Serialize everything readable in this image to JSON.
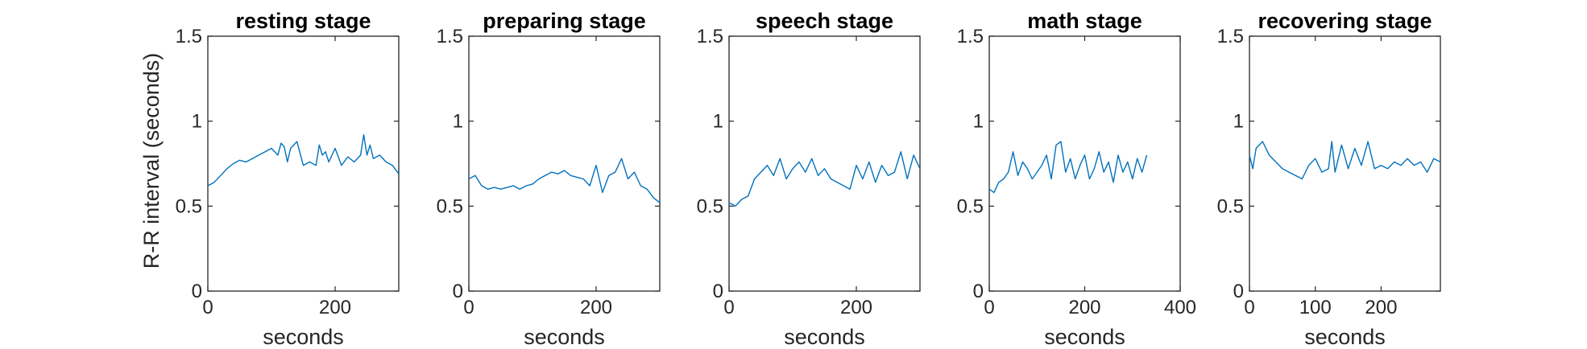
{
  "figure": {
    "trace_color": "#0072BD",
    "ylabel": "R-R interval (seconds)"
  },
  "chart_data": [
    {
      "type": "line",
      "title": "resting stage",
      "xlabel": "seconds",
      "ylabel": "R-R interval (seconds)",
      "xlim": [
        0,
        300
      ],
      "ylim": [
        0,
        1.5
      ],
      "xticks": [
        0,
        200
      ],
      "yticks": [
        0,
        0.5,
        1,
        1.5
      ],
      "grid": false,
      "series": [
        {
          "x": [
            0,
            10,
            20,
            30,
            40,
            50,
            60,
            70,
            80,
            90,
            100,
            110,
            115,
            120,
            125,
            130,
            140,
            150,
            160,
            170,
            175,
            180,
            185,
            190,
            200,
            210,
            220,
            230,
            240,
            245,
            250,
            255,
            260,
            270,
            280,
            290,
            300
          ],
          "y": [
            0.62,
            0.64,
            0.68,
            0.72,
            0.75,
            0.77,
            0.76,
            0.78,
            0.8,
            0.82,
            0.84,
            0.8,
            0.87,
            0.85,
            0.76,
            0.84,
            0.88,
            0.74,
            0.76,
            0.74,
            0.86,
            0.8,
            0.82,
            0.76,
            0.84,
            0.74,
            0.79,
            0.76,
            0.8,
            0.92,
            0.8,
            0.86,
            0.78,
            0.8,
            0.76,
            0.74,
            0.69
          ]
        }
      ]
    },
    {
      "type": "line",
      "title": "preparing stage",
      "xlabel": "seconds",
      "ylabel": "",
      "xlim": [
        0,
        300
      ],
      "ylim": [
        0,
        1.5
      ],
      "xticks": [
        0,
        200
      ],
      "yticks": [
        0,
        0.5,
        1,
        1.5
      ],
      "grid": false,
      "series": [
        {
          "x": [
            0,
            10,
            20,
            30,
            40,
            50,
            60,
            70,
            80,
            90,
            100,
            110,
            120,
            130,
            140,
            150,
            160,
            170,
            180,
            190,
            200,
            210,
            220,
            230,
            240,
            250,
            260,
            270,
            280,
            290,
            300
          ],
          "y": [
            0.66,
            0.68,
            0.62,
            0.6,
            0.61,
            0.6,
            0.61,
            0.62,
            0.6,
            0.62,
            0.63,
            0.66,
            0.68,
            0.7,
            0.69,
            0.71,
            0.68,
            0.67,
            0.66,
            0.62,
            0.74,
            0.58,
            0.68,
            0.7,
            0.78,
            0.66,
            0.7,
            0.62,
            0.6,
            0.55,
            0.52
          ]
        }
      ]
    },
    {
      "type": "line",
      "title": "speech stage",
      "xlabel": "seconds",
      "ylabel": "",
      "xlim": [
        0,
        300
      ],
      "ylim": [
        0,
        1.5
      ],
      "xticks": [
        0,
        200
      ],
      "yticks": [
        0,
        0.5,
        1,
        1.5
      ],
      "grid": false,
      "series": [
        {
          "x": [
            0,
            10,
            20,
            30,
            40,
            50,
            60,
            70,
            80,
            90,
            100,
            110,
            120,
            130,
            140,
            150,
            160,
            170,
            180,
            190,
            200,
            210,
            220,
            230,
            240,
            250,
            260,
            270,
            280,
            290,
            300
          ],
          "y": [
            0.52,
            0.5,
            0.54,
            0.56,
            0.66,
            0.7,
            0.74,
            0.68,
            0.78,
            0.66,
            0.72,
            0.76,
            0.7,
            0.78,
            0.68,
            0.72,
            0.66,
            0.64,
            0.62,
            0.6,
            0.74,
            0.66,
            0.76,
            0.64,
            0.74,
            0.68,
            0.7,
            0.82,
            0.66,
            0.8,
            0.72
          ]
        }
      ]
    },
    {
      "type": "line",
      "title": "math stage",
      "xlabel": "seconds",
      "ylabel": "",
      "xlim": [
        0,
        400
      ],
      "ylim": [
        0,
        1.5
      ],
      "xticks": [
        0,
        200,
        400
      ],
      "yticks": [
        0,
        0.5,
        1,
        1.5
      ],
      "grid": false,
      "series": [
        {
          "x": [
            0,
            10,
            20,
            30,
            40,
            50,
            60,
            70,
            80,
            90,
            100,
            110,
            120,
            130,
            140,
            150,
            160,
            170,
            180,
            190,
            200,
            210,
            220,
            230,
            240,
            250,
            260,
            270,
            280,
            290,
            300,
            310,
            320,
            330
          ],
          "y": [
            0.6,
            0.58,
            0.64,
            0.66,
            0.7,
            0.82,
            0.68,
            0.76,
            0.72,
            0.66,
            0.7,
            0.74,
            0.8,
            0.66,
            0.86,
            0.88,
            0.7,
            0.78,
            0.66,
            0.74,
            0.8,
            0.66,
            0.72,
            0.82,
            0.7,
            0.76,
            0.64,
            0.8,
            0.7,
            0.76,
            0.66,
            0.78,
            0.7,
            0.8
          ]
        }
      ]
    },
    {
      "type": "line",
      "title": "recovering stage",
      "xlabel": "seconds",
      "ylabel": "",
      "xlim": [
        0,
        290
      ],
      "ylim": [
        0,
        1.5
      ],
      "xticks": [
        0,
        100,
        200
      ],
      "yticks": [
        0,
        0.5,
        1,
        1.5
      ],
      "grid": false,
      "series": [
        {
          "x": [
            0,
            5,
            10,
            20,
            30,
            40,
            50,
            60,
            70,
            80,
            90,
            100,
            110,
            120,
            125,
            130,
            140,
            150,
            160,
            170,
            180,
            190,
            200,
            210,
            220,
            230,
            240,
            250,
            260,
            270,
            280,
            290
          ],
          "y": [
            0.8,
            0.72,
            0.84,
            0.88,
            0.8,
            0.76,
            0.72,
            0.7,
            0.68,
            0.66,
            0.74,
            0.78,
            0.7,
            0.72,
            0.88,
            0.7,
            0.86,
            0.72,
            0.84,
            0.74,
            0.88,
            0.72,
            0.74,
            0.72,
            0.76,
            0.74,
            0.78,
            0.74,
            0.76,
            0.7,
            0.78,
            0.76
          ]
        }
      ]
    }
  ]
}
